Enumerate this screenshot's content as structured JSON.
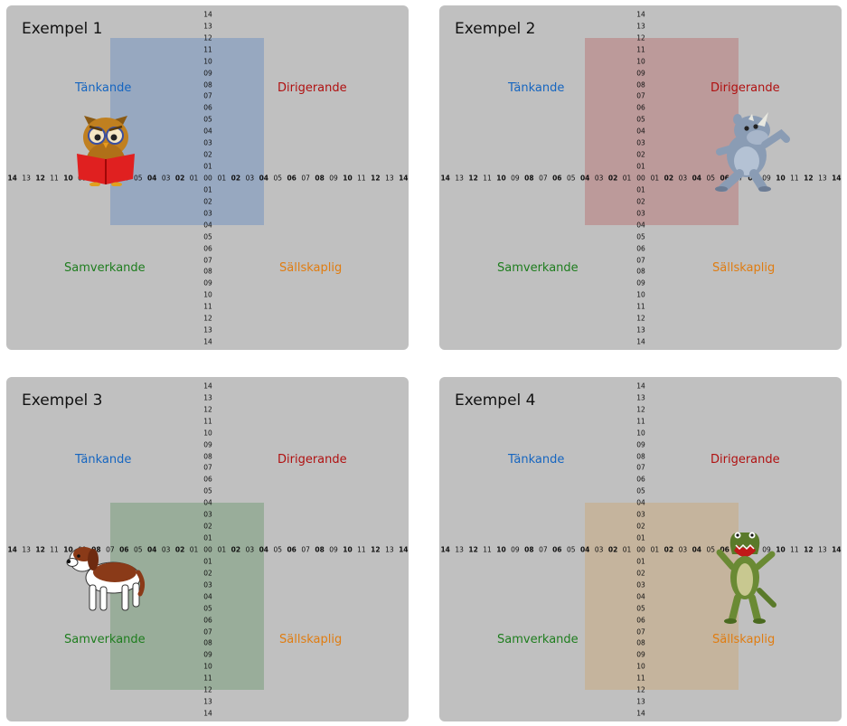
{
  "axis": {
    "vertical_labels": [
      "14",
      "13",
      "12",
      "11",
      "10",
      "09",
      "08",
      "07",
      "06",
      "05",
      "04",
      "03",
      "02",
      "01",
      "00",
      "01",
      "02",
      "03",
      "04",
      "05",
      "06",
      "07",
      "08",
      "09",
      "10",
      "11",
      "12",
      "13",
      "14"
    ],
    "horizontal_labels": [
      "14",
      "13",
      "12",
      "11",
      "10",
      "09",
      "08",
      "07",
      "06",
      "05",
      "04",
      "03",
      "02",
      "01",
      "00",
      "01",
      "02",
      "03",
      "04",
      "05",
      "06",
      "07",
      "08",
      "09",
      "10",
      "11",
      "12",
      "13",
      "14"
    ]
  },
  "quadrants": {
    "top_left": "Tänkande",
    "top_right": "Dirigerande",
    "bottom_left": "Samverkande",
    "bottom_right": "Sällskaplig"
  },
  "colors": {
    "panel_bg": "#c0c0c0",
    "tankande": "#1565c0",
    "dirigerande": "#b01010",
    "samverkande": "#1e7d1e",
    "sallskaplig": "#e07c10"
  },
  "examples": [
    {
      "title": "Exempel 1",
      "area": {
        "x_from": -7,
        "x_to": 4,
        "y_from": -4,
        "y_to": 12
      },
      "area_color": "#6a8fc0",
      "animal": "owl-icon"
    },
    {
      "title": "Exempel 2",
      "area": {
        "x_from": -4,
        "x_to": 7,
        "y_from": -4,
        "y_to": 12
      },
      "area_color": "#b87070",
      "animal": "rhino-icon"
    },
    {
      "title": "Exempel 3",
      "area": {
        "x_from": -7,
        "x_to": 4,
        "y_from": -12,
        "y_to": 4
      },
      "area_color": "#6e9870",
      "animal": "dog-icon"
    },
    {
      "title": "Exempel 4",
      "area": {
        "x_from": -4,
        "x_to": 7,
        "y_from": -12,
        "y_to": 4
      },
      "area_color": "#caa878",
      "animal": "crocodile-icon"
    }
  ]
}
